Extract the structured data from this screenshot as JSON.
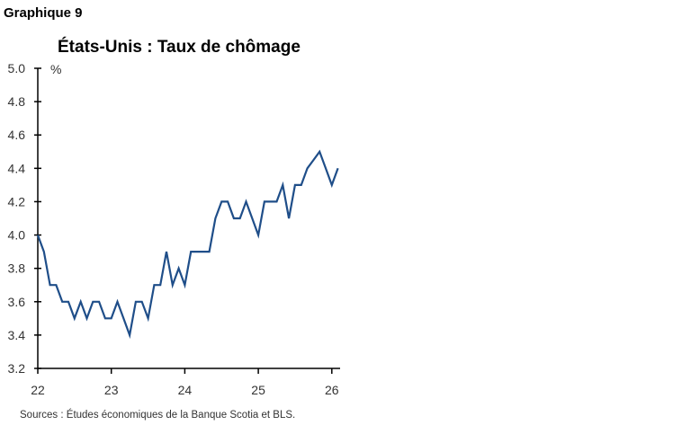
{
  "figure_label": "Graphique 9",
  "source": "Sources : Études économiques de la Banque Scotia et BLS.",
  "chart_data": {
    "type": "line",
    "title": "États-Unis : Taux de chômage",
    "ylabel": "%",
    "xlabel": "",
    "ylim": [
      3.2,
      5.0
    ],
    "yticks": [
      3.2,
      3.4,
      3.6,
      3.8,
      4.0,
      4.2,
      4.4,
      4.6,
      4.8,
      5.0
    ],
    "xticks": [
      "22",
      "23",
      "24",
      "25",
      "26"
    ],
    "grid": false,
    "line_color": "#1f4e89",
    "x_start": "2022-01",
    "x_frequency": "monthly",
    "values": [
      4.0,
      3.9,
      3.7,
      3.7,
      3.6,
      3.6,
      3.5,
      3.6,
      3.5,
      3.6,
      3.6,
      3.5,
      3.5,
      3.6,
      3.5,
      3.4,
      3.6,
      3.6,
      3.5,
      3.7,
      3.7,
      3.9,
      3.7,
      3.8,
      3.7,
      3.9,
      3.9,
      3.9,
      3.9,
      4.1,
      4.2,
      4.2,
      4.1,
      4.1,
      4.2,
      4.1,
      4.0,
      4.2,
      4.2,
      4.2,
      4.3,
      4.1,
      4.3,
      4.3,
      4.4,
      4.45,
      4.5,
      4.4,
      4.3,
      4.4
    ]
  }
}
